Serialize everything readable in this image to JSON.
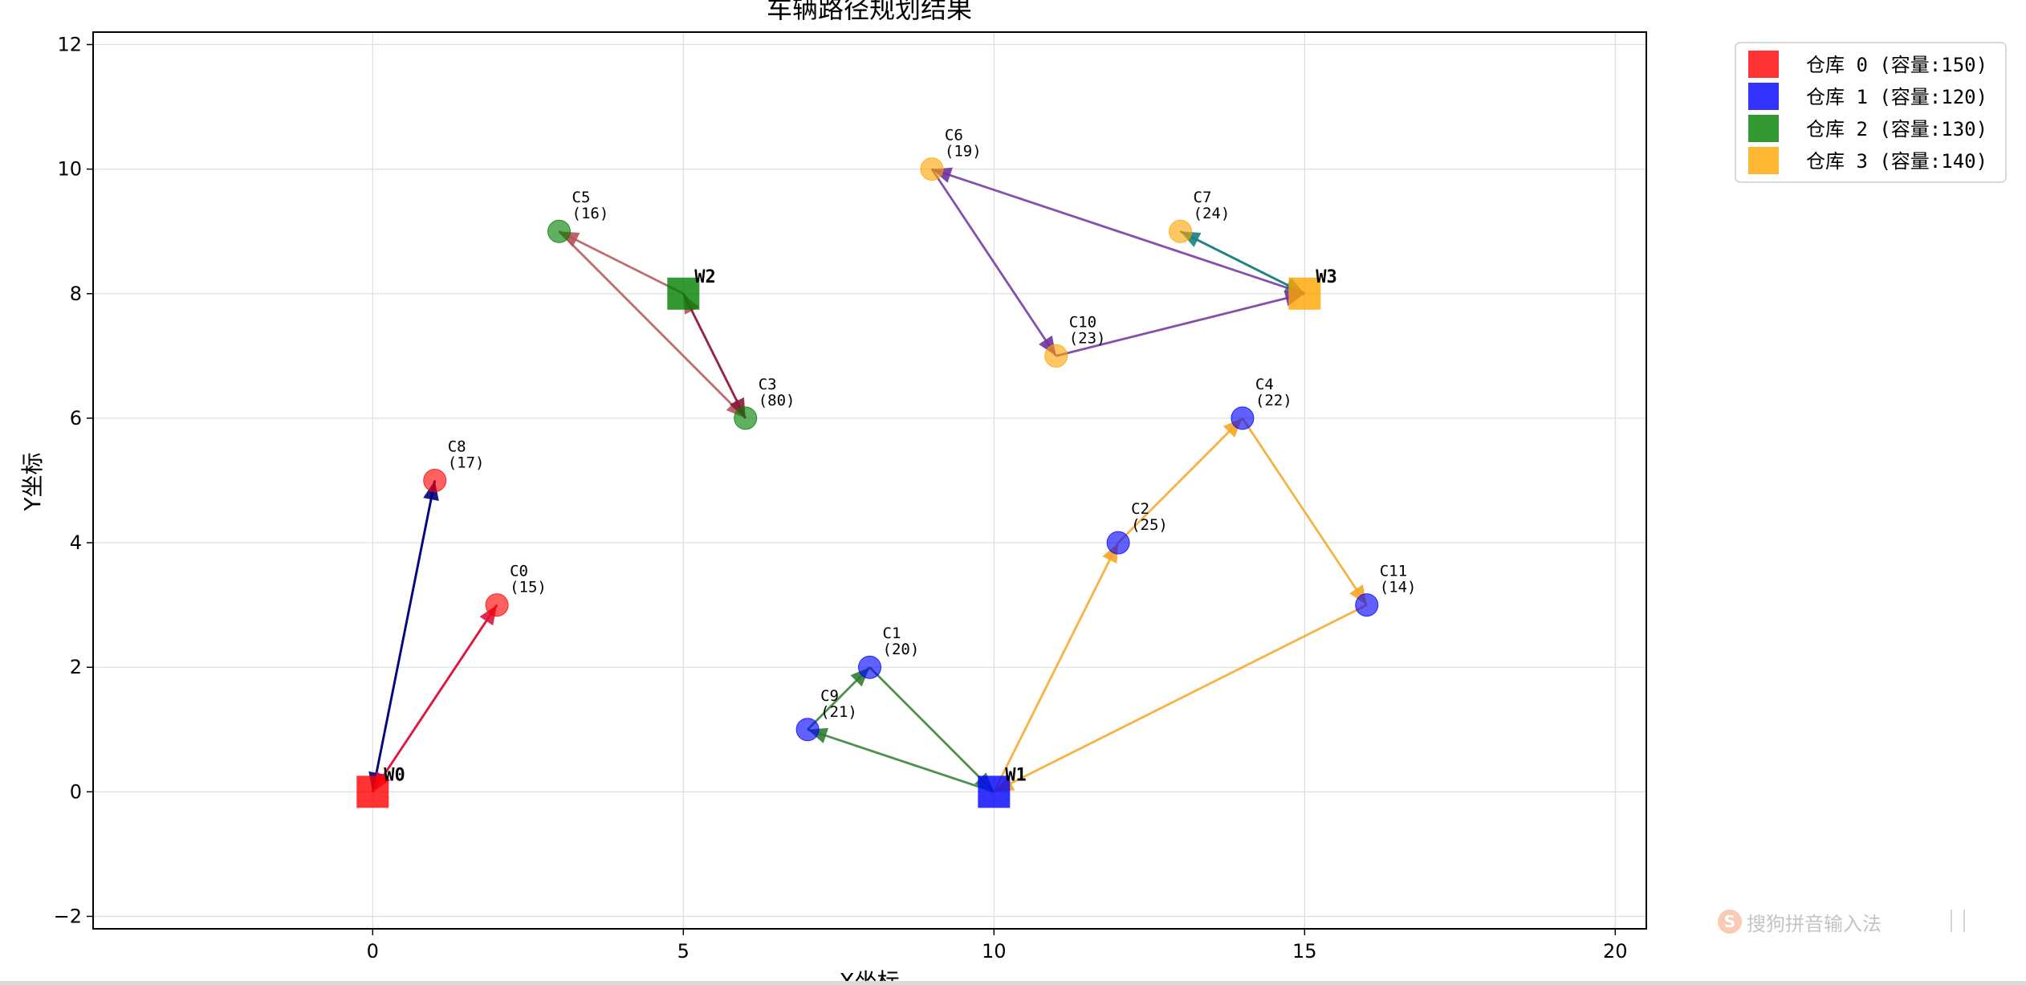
{
  "chart_data": {
    "type": "scatter",
    "title": "车辆路径规划结果",
    "xlabel": "X坐标",
    "ylabel": "Y坐标",
    "xlim": [
      -4.5,
      20.5
    ],
    "ylim": [
      -2.2,
      12.2
    ],
    "xticks": [
      0,
      5,
      10,
      15,
      20
    ],
    "yticks": [
      -2,
      0,
      2,
      4,
      6,
      8,
      10,
      12
    ],
    "grid": true,
    "legend_position": "outside-top-right",
    "warehouses": [
      {
        "id": "W0",
        "label": "W0",
        "x": 0,
        "y": 0,
        "color": "#ff0000",
        "legend": "仓库 0 (容量:150)"
      },
      {
        "id": "W1",
        "label": "W1",
        "x": 10,
        "y": 0,
        "color": "#0000ff",
        "legend": "仓库 1 (容量:120)"
      },
      {
        "id": "W2",
        "label": "W2",
        "x": 5,
        "y": 8,
        "color": "#008000",
        "legend": "仓库 2 (容量:130)"
      },
      {
        "id": "W3",
        "label": "W3",
        "x": 15,
        "y": 8,
        "color": "#ffa500",
        "legend": "仓库 3 (容量:140)"
      }
    ],
    "customers": [
      {
        "id": "C0",
        "name": "C0",
        "demand": "(15)",
        "x": 2,
        "y": 3,
        "color": "#ff0000"
      },
      {
        "id": "C1",
        "name": "C1",
        "demand": "(20)",
        "x": 8,
        "y": 2,
        "color": "#0000ff"
      },
      {
        "id": "C2",
        "name": "C2",
        "demand": "(25)",
        "x": 12,
        "y": 4,
        "color": "#0000ff"
      },
      {
        "id": "C3",
        "name": "C3",
        "demand": "(80)",
        "x": 6,
        "y": 6,
        "color": "#008000"
      },
      {
        "id": "C4",
        "name": "C4",
        "demand": "(22)",
        "x": 14,
        "y": 6,
        "color": "#0000ff"
      },
      {
        "id": "C5",
        "name": "C5",
        "demand": "(16)",
        "x": 3,
        "y": 9,
        "color": "#008000"
      },
      {
        "id": "C6",
        "name": "C6",
        "demand": "(19)",
        "x": 9,
        "y": 10,
        "color": "#ffa500"
      },
      {
        "id": "C7",
        "name": "C7",
        "demand": "(24)",
        "x": 13,
        "y": 9,
        "color": "#ffa500"
      },
      {
        "id": "C8",
        "name": "C8",
        "demand": "(17)",
        "x": 1,
        "y": 5,
        "color": "#ff0000"
      },
      {
        "id": "C9",
        "name": "C9",
        "demand": "(21)",
        "x": 7,
        "y": 1,
        "color": "#0000ff"
      },
      {
        "id": "C10",
        "name": "C10",
        "demand": "(23)",
        "x": 11,
        "y": 7,
        "color": "#ffa500"
      },
      {
        "id": "C11",
        "name": "C11",
        "demand": "(14)",
        "x": 16,
        "y": 3,
        "color": "#0000ff"
      }
    ],
    "routes": [
      {
        "name": "route-w0-c8",
        "color": "#000080",
        "path": [
          [
            0,
            0
          ],
          [
            1,
            5
          ],
          [
            0,
            0
          ]
        ]
      },
      {
        "name": "route-w0-c0",
        "color": "#dc143c",
        "path": [
          [
            0,
            0
          ],
          [
            2,
            3
          ],
          [
            0,
            0
          ]
        ]
      },
      {
        "name": "route-w2-c5",
        "color": "#b5535a",
        "path": [
          [
            5,
            8
          ],
          [
            3,
            9
          ],
          [
            6,
            6
          ],
          [
            5,
            8
          ]
        ]
      },
      {
        "name": "route-w2-c3",
        "color": "#8b1a3a",
        "path": [
          [
            5,
            8
          ],
          [
            6,
            6
          ]
        ]
      },
      {
        "name": "route-w1-c9-c1",
        "color": "#2e7d32",
        "path": [
          [
            10,
            0
          ],
          [
            7,
            1
          ],
          [
            8,
            2
          ],
          [
            10,
            0
          ]
        ]
      },
      {
        "name": "route-w1-c2-c4-c11",
        "color": "#f5a623",
        "path": [
          [
            10,
            0
          ],
          [
            12,
            4
          ],
          [
            14,
            6
          ],
          [
            16,
            3
          ],
          [
            10,
            0
          ]
        ]
      },
      {
        "name": "route-w3-c7",
        "color": "#1a8080",
        "path": [
          [
            15,
            8
          ],
          [
            13,
            9
          ],
          [
            15,
            8
          ]
        ]
      },
      {
        "name": "route-w3-c6-c10",
        "color": "#7030a0",
        "path": [
          [
            15,
            8
          ],
          [
            9,
            10
          ],
          [
            11,
            7
          ],
          [
            15,
            8
          ]
        ]
      }
    ]
  },
  "ime_toolbar": {
    "logo": "S",
    "text": "搜狗拼音输入法"
  }
}
